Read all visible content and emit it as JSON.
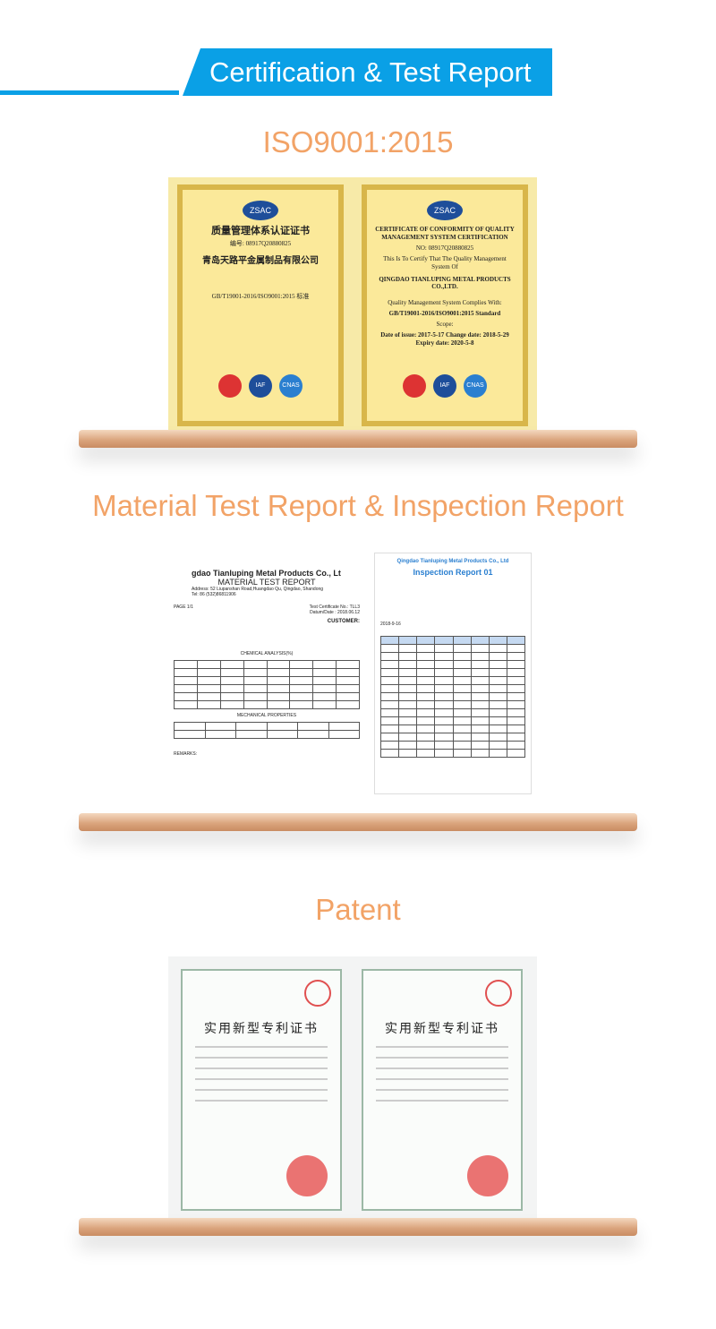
{
  "banner": {
    "title": "Certification & Test Report",
    "color": "#0aa0e6"
  },
  "sections": [
    {
      "heading": "ISO9001:2015"
    },
    {
      "heading": "Material Test Report & Inspection Report"
    },
    {
      "heading": "Patent"
    }
  ],
  "iso": {
    "cn": {
      "logo": "ZSAC",
      "title": "质量管理体系认证证书",
      "number": "编号: 08917Q20880825",
      "company": "青岛天路平金属制品有限公司",
      "standard": "GB/T19001-2016/ISO9001:2015 标准"
    },
    "en": {
      "logo": "ZSAC",
      "title": "CERTIFICATE OF CONFORMITY OF QUALITY MANAGEMENT SYSTEM CERTIFICATION",
      "number": "NO: 08917Q20880825",
      "intro": "This Is To Certify That The Quality Management System Of",
      "company": "QINGDAO TIANLUPING METAL PRODUCTS CO.,LTD.",
      "complies": "Quality Management System Complies With:",
      "standard": "GB/T19001-2016/ISO9001:2015 Standard",
      "scope": "Scope:",
      "dates": "Date of issue: 2017-5-17 Change date: 2018-5-29 Expiry date: 2020-5-8"
    },
    "stamps": [
      "IAF",
      "CNAS"
    ]
  },
  "report": {
    "company": "gdao Tianluping Metal Products Co., Lt",
    "title": "MATERIAL TEST REPORT",
    "address": "Address: 52 Liupanshan Road,Huangdao Qu, Qingdao, Shandong",
    "tel": "Tel: 86 (532)86811906",
    "page": "PAGE 1/1",
    "cert_no": "Test Certificate No.: TLL3",
    "date": "Datum/Date : 2018.06.12",
    "customer": "CUSTOMER:",
    "chem": "CHEMICAL ANALYSIS(%)",
    "mech": "MECHANICAL PROPERTIES",
    "remarks": "REMARKS:"
  },
  "inspection": {
    "company": "Qingdao Tianluping Metal Products Co., Ltd",
    "title": "Inspection Report 01",
    "date": "2018-9-16"
  },
  "patent": {
    "title1": "实用新型专利证书",
    "title2": "实用新型专利证书"
  }
}
